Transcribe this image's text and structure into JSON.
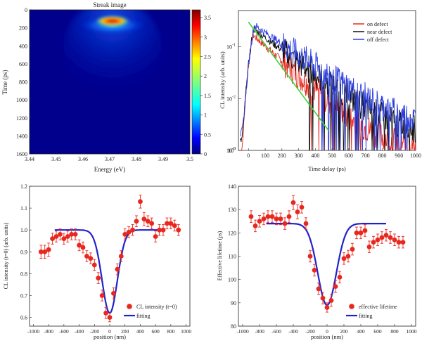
{
  "figure": {
    "panels": {
      "streak": {
        "title": "Streak image",
        "xlabel": "Energy (eV)",
        "ylabel": "Time (ps)",
        "xticks": [
          "3.44",
          "3.45",
          "3.46",
          "3.47",
          "3.48",
          "3.49",
          "3.5"
        ],
        "yticks": [
          "0",
          "200",
          "400",
          "600",
          "800",
          "1000",
          "1200",
          "1400",
          "1600"
        ],
        "cbar_ticks": [
          "0",
          "0.5",
          "1",
          "1.5",
          "2",
          "2.5",
          "3",
          "3.5"
        ]
      },
      "decay": {
        "xlabel": "Time delay (ps)",
        "ylabel": "CL intensity (arb. units)",
        "xticks": [
          "0",
          "100",
          "200",
          "300",
          "400",
          "500",
          "600",
          "700",
          "800",
          "900",
          "1000"
        ],
        "ytick_powers": [
          "-3",
          "-2",
          "-1"
        ],
        "ytick_base": "10",
        "ytick_zero": "10",
        "ytick_zero_sup": "0",
        "legend": [
          "on defect",
          "near defect",
          "off defect"
        ]
      },
      "intensity": {
        "xlabel": "position (nm)",
        "ylabel": "CL intensity (t=0) (arb. units)",
        "xticks": [
          "-1000",
          "-800",
          "-600",
          "-400",
          "-200",
          "0",
          "200",
          "400",
          "600",
          "800",
          "1000"
        ],
        "yticks": [
          "0.6",
          "0.7",
          "0.8",
          "0.9",
          "1.0",
          "1.1",
          "1.2"
        ],
        "legend": [
          "CL intensity (t=0)",
          "fitting"
        ]
      },
      "lifetime": {
        "xlabel": "position (nm)",
        "ylabel": "Effective lifetime (ps)",
        "xticks": [
          "-1000",
          "-800",
          "-600",
          "-400",
          "-200",
          "0",
          "200",
          "400",
          "600",
          "800",
          "1000"
        ],
        "yticks": [
          "80",
          "90",
          "100",
          "110",
          "120",
          "130",
          "140"
        ],
        "legend": [
          "effective lifetime",
          "fitting"
        ]
      }
    }
  },
  "chart_data": [
    {
      "type": "heatmap",
      "title": "Streak image",
      "xlabel": "Energy (eV)",
      "ylabel": "Time (ps)",
      "xlim": [
        3.44,
        3.5
      ],
      "ylim": [
        1600,
        0
      ],
      "colorbar": {
        "min": 0,
        "max": 3.7,
        "ticks": [
          0,
          0.5,
          1,
          1.5,
          2,
          2.5,
          3,
          3.5
        ],
        "colormap": "jet"
      },
      "peak": {
        "energy_eV": 3.474,
        "time_ps": 90,
        "intensity": 3.7
      }
    },
    {
      "type": "line",
      "xlabel": "Time delay (ps)",
      "ylabel": "CL intensity (arb. units)",
      "xlim": [
        -60,
        1000
      ],
      "ylim": [
        0.001,
        0.5
      ],
      "yscale": "log",
      "legend_position": "top-right",
      "series": [
        {
          "name": "on defect",
          "color": "#e8281e",
          "peak_time_ps": 25,
          "peak_value": 0.17,
          "tau_ps": 150,
          "noise_floor": 0.003
        },
        {
          "name": "near defect",
          "color": "#111111",
          "peak_time_ps": 30,
          "peak_value": 0.22,
          "tau_ps": 180,
          "noise_floor": 0.005
        },
        {
          "name": "off defect",
          "color": "#2a3de0",
          "peak_time_ps": 35,
          "peak_value": 0.26,
          "tau_ps": 195,
          "noise_floor": 0.007
        }
      ],
      "fit": {
        "color": "#3cd43c",
        "x_start": 0,
        "x_end": 480,
        "y_start": 0.3,
        "y_end": 0.0024
      }
    },
    {
      "type": "scatter",
      "xlabel": "position (nm)",
      "ylabel": "CL intensity (t=0) (arb. units)",
      "xlim": [
        -1050,
        1050
      ],
      "ylim": [
        0.56,
        1.2
      ],
      "legend_position": "bottom-right",
      "series": [
        {
          "name": "CL intensity (t=0)",
          "color": "#e8281e",
          "x": [
            -900,
            -850,
            -800,
            -750,
            -700,
            -650,
            -600,
            -550,
            -500,
            -450,
            -400,
            -350,
            -300,
            -250,
            -200,
            -150,
            -100,
            -50,
            0,
            50,
            100,
            150,
            200,
            250,
            300,
            350,
            400,
            450,
            500,
            550,
            600,
            650,
            700,
            750,
            800,
            850,
            900
          ],
          "y": [
            0.9,
            0.9,
            0.91,
            0.96,
            0.97,
            0.98,
            0.96,
            0.97,
            0.98,
            0.98,
            0.93,
            0.92,
            0.88,
            0.87,
            0.84,
            0.78,
            0.7,
            0.62,
            0.6,
            0.71,
            0.82,
            0.88,
            0.98,
            0.99,
            1.0,
            1.04,
            1.13,
            1.05,
            1.04,
            1.03,
            0.97,
            1.0,
            1.0,
            1.03,
            1.03,
            1.02,
            1.0
          ],
          "error": [
            0.03,
            0.03,
            0.03,
            0.025,
            0.025,
            0.025,
            0.025,
            0.025,
            0.025,
            0.025,
            0.025,
            0.025,
            0.025,
            0.025,
            0.025,
            0.025,
            0.025,
            0.025,
            0.02,
            0.025,
            0.025,
            0.025,
            0.025,
            0.025,
            0.025,
            0.025,
            0.03,
            0.03,
            0.025,
            0.025,
            0.025,
            0.025,
            0.025,
            0.025,
            0.025,
            0.025,
            0.025
          ]
        },
        {
          "name": "fitting",
          "color": "#2222cc",
          "function": "1 - 0.38*exp(-x^2/(2*100^2))",
          "x_range": [
            -720,
            700
          ]
        }
      ]
    },
    {
      "type": "scatter",
      "xlabel": "position (nm)",
      "ylabel": "Effective lifetime (ps)",
      "xlim": [
        -1050,
        1050
      ],
      "ylim": [
        80,
        140
      ],
      "legend_position": "bottom-right",
      "series": [
        {
          "name": "effective lifetime",
          "color": "#e8281e",
          "x": [
            -900,
            -850,
            -800,
            -750,
            -700,
            -650,
            -600,
            -550,
            -500,
            -450,
            -400,
            -350,
            -300,
            -250,
            -200,
            -150,
            -100,
            -50,
            0,
            50,
            100,
            150,
            200,
            250,
            300,
            350,
            400,
            450,
            500,
            550,
            600,
            650,
            700,
            750,
            800,
            850,
            900
          ],
          "y": [
            127,
            123,
            125,
            126,
            127,
            127,
            126,
            126,
            124,
            127,
            133,
            129,
            131,
            124,
            110,
            104,
            96,
            92,
            88,
            91,
            97,
            101,
            109,
            110,
            113,
            120,
            120,
            121,
            114,
            116,
            117,
            118,
            119,
            118,
            117,
            116,
            116
          ],
          "error": [
            2.5,
            2.5,
            2.5,
            2.5,
            2.5,
            2.5,
            2.5,
            2.5,
            2.5,
            2.5,
            3,
            3,
            2.5,
            2.5,
            2.5,
            2.5,
            2.5,
            2.5,
            2,
            2.5,
            2.5,
            2.5,
            2.5,
            2.5,
            2.5,
            2.5,
            2.5,
            2.5,
            2.5,
            2.5,
            2.5,
            2.5,
            2.5,
            2.5,
            2.5,
            2.5,
            2.5
          ]
        },
        {
          "name": "fitting",
          "color": "#2222cc",
          "function": "124 - 35*exp(-x^2/(2*110^2))",
          "x_range": [
            -720,
            700
          ]
        }
      ]
    }
  ]
}
